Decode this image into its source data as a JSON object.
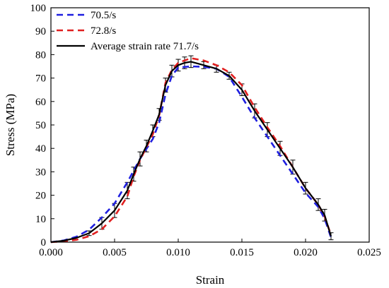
{
  "chart_data": {
    "type": "line",
    "title": "",
    "xlabel": "Strain",
    "ylabel": "Stress (MPa)",
    "xlim": [
      0.0,
      0.025
    ],
    "ylim": [
      0,
      100
    ],
    "x_ticks": [
      0.0,
      0.005,
      0.01,
      0.015,
      0.02,
      0.025
    ],
    "x_tick_labels": [
      "0.000",
      "0.005",
      "0.010",
      "0.015",
      "0.020",
      "0.025"
    ],
    "y_ticks": [
      0,
      10,
      20,
      30,
      40,
      50,
      60,
      70,
      80,
      90,
      100
    ],
    "y_tick_labels": [
      "0",
      "10",
      "20",
      "30",
      "40",
      "50",
      "60",
      "70",
      "80",
      "90",
      "100"
    ],
    "grid": false,
    "legend_position": "top-left",
    "series": [
      {
        "name": "70.5/s",
        "color": "#1f1fe0",
        "dash": "dashed",
        "x": [
          0.0,
          0.001,
          0.002,
          0.003,
          0.004,
          0.005,
          0.006,
          0.007,
          0.008,
          0.0085,
          0.009,
          0.0095,
          0.01,
          0.011,
          0.012,
          0.013,
          0.014,
          0.015,
          0.016,
          0.017,
          0.018,
          0.019,
          0.02,
          0.021,
          0.0215,
          0.022
        ],
        "y": [
          0.0,
          0.7,
          2.3,
          5.3,
          10.5,
          16.5,
          25.5,
          35.5,
          44.0,
          51.0,
          63.0,
          71.0,
          74.5,
          75.0,
          74.8,
          74.0,
          70.5,
          62.0,
          53.0,
          45.0,
          37.0,
          29.0,
          21.0,
          15.0,
          10.0,
          2.0
        ]
      },
      {
        "name": "72.8/s",
        "color": "#e01f1f",
        "dash": "dashed",
        "x": [
          0.0,
          0.001,
          0.002,
          0.003,
          0.004,
          0.005,
          0.006,
          0.0065,
          0.007,
          0.008,
          0.0085,
          0.009,
          0.0095,
          0.01,
          0.011,
          0.012,
          0.013,
          0.014,
          0.015,
          0.016,
          0.017,
          0.018,
          0.019,
          0.02,
          0.021,
          0.0215,
          0.022
        ],
        "y": [
          0.0,
          0.3,
          1.0,
          2.5,
          5.5,
          11.0,
          19.5,
          28.0,
          35.0,
          46.0,
          54.0,
          68.0,
          73.5,
          76.5,
          78.5,
          77.5,
          75.5,
          72.5,
          67.0,
          57.5,
          49.0,
          41.0,
          32.0,
          23.0,
          16.0,
          11.0,
          3.0
        ]
      },
      {
        "name": "Average strain rate 71.7/s",
        "color": "#000000",
        "dash": "solid",
        "x": [
          0.0,
          0.001,
          0.002,
          0.003,
          0.004,
          0.005,
          0.006,
          0.0065,
          0.007,
          0.0075,
          0.008,
          0.0085,
          0.009,
          0.0095,
          0.01,
          0.0105,
          0.011,
          0.012,
          0.013,
          0.014,
          0.015,
          0.016,
          0.017,
          0.018,
          0.019,
          0.02,
          0.021,
          0.0215,
          0.022
        ],
        "y": [
          0.0,
          0.6,
          1.8,
          3.8,
          8.0,
          13.5,
          22.0,
          29.0,
          35.5,
          41.0,
          47.5,
          54.5,
          67.0,
          73.0,
          75.5,
          76.5,
          77.0,
          75.5,
          74.0,
          71.0,
          65.0,
          56.0,
          48.0,
          40.0,
          32.0,
          23.0,
          16.0,
          11.5,
          2.5
        ]
      }
    ],
    "error_bars": {
      "color": "#000000",
      "x": [
        0.003,
        0.004,
        0.005,
        0.006,
        0.0065,
        0.007,
        0.0075,
        0.008,
        0.0085,
        0.009,
        0.0095,
        0.01,
        0.0105,
        0.011,
        0.012,
        0.013,
        0.014,
        0.015,
        0.016,
        0.017,
        0.018,
        0.019,
        0.02,
        0.021,
        0.0215,
        0.022
      ],
      "y": [
        3.8,
        8.0,
        13.5,
        22.0,
        29.0,
        35.5,
        41.0,
        47.5,
        54.5,
        67.0,
        73.0,
        75.5,
        76.5,
        77.0,
        75.5,
        74.0,
        71.0,
        65.0,
        56.0,
        48.0,
        40.0,
        32.0,
        23.0,
        16.0,
        11.5,
        2.5
      ],
      "err": [
        1.0,
        2.5,
        3.0,
        3.5,
        3.0,
        3.0,
        2.5,
        2.5,
        2.5,
        3.0,
        2.5,
        2.5,
        2.5,
        2.5,
        1.5,
        1.5,
        1.5,
        2.5,
        3.0,
        3.0,
        3.0,
        3.0,
        2.5,
        2.5,
        2.5,
        1.5
      ]
    }
  }
}
